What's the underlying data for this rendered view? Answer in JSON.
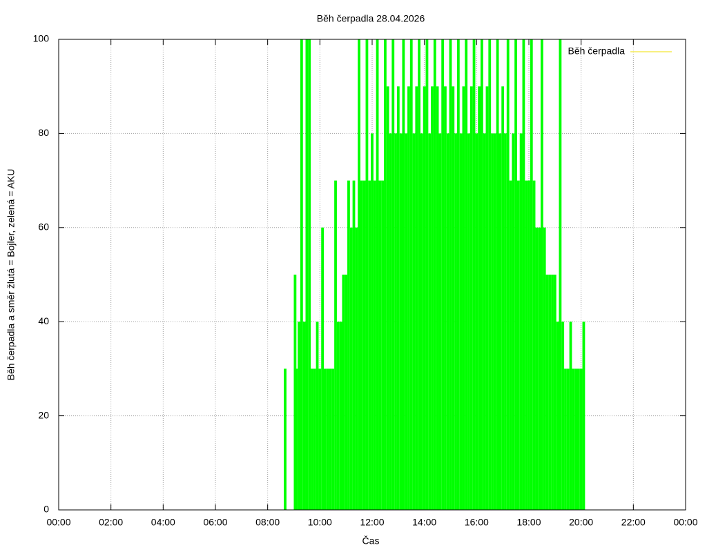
{
  "chart_data": {
    "type": "impulse",
    "title": "Běh čerpadla 28.04.2026",
    "x_label": "Čas",
    "y_label": "Běh čerpadla a směr žlutá = Bojler, zelená = AKU",
    "xlim": [
      0,
      24
    ],
    "xticks": [
      {
        "value": 0,
        "label": "00:00"
      },
      {
        "value": 2,
        "label": "02:00"
      },
      {
        "value": 4,
        "label": "04:00"
      },
      {
        "value": 6,
        "label": "06:00"
      },
      {
        "value": 8,
        "label": "08:00"
      },
      {
        "value": 10,
        "label": "10:00"
      },
      {
        "value": 12,
        "label": "12:00"
      },
      {
        "value": 14,
        "label": "14:00"
      },
      {
        "value": 16,
        "label": "16:00"
      },
      {
        "value": 18,
        "label": "18:00"
      },
      {
        "value": 20,
        "label": "20:00"
      },
      {
        "value": 22,
        "label": "22:00"
      },
      {
        "value": 24,
        "label": "00:00"
      }
    ],
    "ylim": [
      0,
      100
    ],
    "yticks": [
      0,
      20,
      40,
      60,
      80,
      100
    ],
    "grid": true,
    "legend": {
      "label": "Běh čerpadla",
      "color": "#f0e000",
      "position": "top right"
    },
    "series": [
      {
        "color": "#00ff00",
        "x": [
          8.67,
          9.05,
          9.1,
          9.2,
          9.3,
          9.4,
          9.5,
          9.6,
          9.7,
          9.8,
          9.9,
          10.0,
          10.1,
          10.2,
          10.3,
          10.4,
          10.5,
          10.6,
          10.7,
          10.8,
          10.9,
          11.0,
          11.1,
          11.2,
          11.3,
          11.4,
          11.5,
          11.6,
          11.7,
          11.8,
          11.9,
          12.0,
          12.1,
          12.2,
          12.3,
          12.4,
          12.5,
          12.6,
          12.7,
          12.8,
          12.9,
          13.0,
          13.1,
          13.2,
          13.3,
          13.4,
          13.5,
          13.6,
          13.7,
          13.8,
          13.9,
          14.0,
          14.1,
          14.2,
          14.3,
          14.4,
          14.5,
          14.6,
          14.7,
          14.8,
          14.9,
          15.0,
          15.1,
          15.2,
          15.3,
          15.4,
          15.5,
          15.6,
          15.7,
          15.8,
          15.9,
          16.0,
          16.1,
          16.2,
          16.3,
          16.4,
          16.5,
          16.6,
          16.7,
          16.8,
          16.9,
          17.0,
          17.1,
          17.2,
          17.3,
          17.4,
          17.5,
          17.6,
          17.7,
          17.8,
          17.9,
          18.0,
          18.1,
          18.2,
          18.3,
          18.4,
          18.5,
          18.6,
          18.7,
          18.8,
          18.9,
          19.0,
          19.1,
          19.2,
          19.3,
          19.4,
          19.5,
          19.6,
          19.7,
          19.8,
          19.9,
          20.0,
          20.1
        ],
        "values": [
          30,
          50,
          30,
          40,
          100,
          40,
          100,
          100,
          30,
          30,
          40,
          30,
          60,
          30,
          30,
          30,
          30,
          70,
          40,
          40,
          50,
          50,
          70,
          60,
          70,
          60,
          100,
          70,
          70,
          100,
          70,
          80,
          70,
          100,
          70,
          70,
          100,
          90,
          80,
          100,
          80,
          90,
          80,
          100,
          80,
          90,
          100,
          80,
          90,
          100,
          80,
          90,
          100,
          80,
          90,
          100,
          90,
          80,
          100,
          90,
          80,
          100,
          90,
          80,
          100,
          80,
          90,
          100,
          80,
          90,
          100,
          80,
          90,
          100,
          80,
          90,
          100,
          80,
          80,
          100,
          80,
          90,
          80,
          100,
          70,
          80,
          100,
          70,
          80,
          100,
          70,
          70,
          100,
          70,
          60,
          60,
          100,
          60,
          50,
          50,
          50,
          50,
          40,
          100,
          40,
          30,
          30,
          40,
          30,
          30,
          30,
          30,
          40
        ]
      }
    ]
  }
}
